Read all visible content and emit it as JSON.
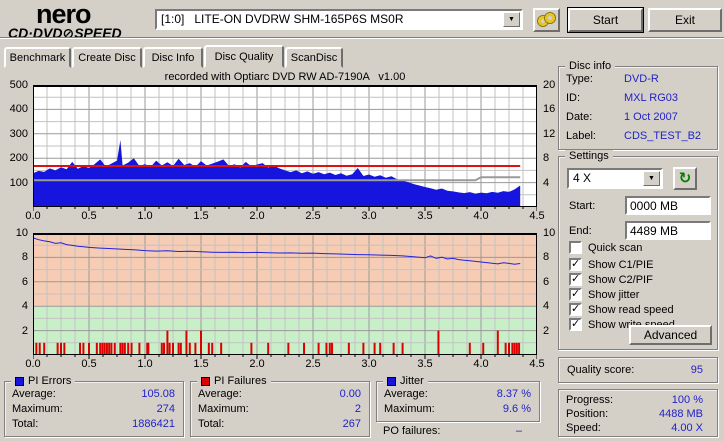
{
  "app": {
    "logo_line1": "nero",
    "logo_cd": "CD·DVD",
    "logo_disc_glyph": "⊘",
    "logo_speed": "SPEED",
    "drive": "[1:0]   LITE-ON DVDRW SHM-165P6S MS0R",
    "start_label": "Start",
    "exit_label": "Exit"
  },
  "icons": {
    "dropdown_arrow": "▼",
    "check": "✓",
    "refresh": "↻"
  },
  "colors": {
    "value_blue": "#2222c8",
    "pie_blue": "#1515dd",
    "pif_red": "#dd0000",
    "zone_salmon": "#f6cdb4",
    "zone_green": "#c9efc9",
    "window_bg": "#d4d0c8"
  },
  "tabs": [
    {
      "label": "Benchmark",
      "active": false
    },
    {
      "label": "Create Disc",
      "active": false
    },
    {
      "label": "Disc Info",
      "active": false
    },
    {
      "label": "Disc Quality",
      "active": true
    },
    {
      "label": "ScanDisc",
      "active": false
    }
  ],
  "chart_data": [
    {
      "type": "area",
      "title": "recorded with Optiarc DVD RW AD-7190A   v1.00",
      "x_range": [
        0,
        4.5
      ],
      "x_tick_labels": [
        "0.0",
        "0.5",
        "1.0",
        "1.5",
        "2.0",
        "2.5",
        "3.0",
        "3.5",
        "4.0",
        "4.5"
      ],
      "grid": {
        "x_minor": 0.125,
        "x_major": 0.5,
        "y_minor": 50,
        "y_major": 100
      },
      "plot_bg": "#ffffff",
      "y_axis": {
        "range": [
          0,
          500
        ],
        "ticks": [
          100,
          200,
          300,
          400,
          500
        ]
      },
      "y_right": {
        "range": [
          0,
          20
        ],
        "ticks": [
          4,
          8,
          12,
          16,
          20
        ]
      },
      "series": [
        {
          "name": "PI Errors",
          "type": "area",
          "color": "#1515dd",
          "points": [
            [
              0,
              138
            ],
            [
              0.05,
              148
            ],
            [
              0.1,
              144
            ],
            [
              0.15,
              158
            ],
            [
              0.2,
              150
            ],
            [
              0.25,
              163
            ],
            [
              0.3,
              155
            ],
            [
              0.35,
              185
            ],
            [
              0.4,
              157
            ],
            [
              0.45,
              168
            ],
            [
              0.5,
              160
            ],
            [
              0.55,
              176
            ],
            [
              0.6,
              195
            ],
            [
              0.65,
              166
            ],
            [
              0.7,
              178
            ],
            [
              0.75,
              190
            ],
            [
              0.78,
              274
            ],
            [
              0.8,
              170
            ],
            [
              0.85,
              182
            ],
            [
              0.9,
              200
            ],
            [
              0.95,
              168
            ],
            [
              1,
              176
            ],
            [
              1.05,
              164
            ],
            [
              1.1,
              190
            ],
            [
              1.15,
              170
            ],
            [
              1.2,
              183
            ],
            [
              1.25,
              168
            ],
            [
              1.3,
              198
            ],
            [
              1.35,
              172
            ],
            [
              1.4,
              180
            ],
            [
              1.45,
              165
            ],
            [
              1.5,
              188
            ],
            [
              1.55,
              170
            ],
            [
              1.6,
              178
            ],
            [
              1.65,
              186
            ],
            [
              1.7,
              195
            ],
            [
              1.75,
              168
            ],
            [
              1.8,
              175
            ],
            [
              1.85,
              162
            ],
            [
              1.9,
              185
            ],
            [
              1.95,
              166
            ],
            [
              2,
              174
            ],
            [
              2.05,
              180
            ],
            [
              2.1,
              162
            ],
            [
              2.15,
              170
            ],
            [
              2.2,
              158
            ],
            [
              2.25,
              150
            ],
            [
              2.3,
              143
            ],
            [
              2.35,
              150
            ],
            [
              2.4,
              138
            ],
            [
              2.45,
              146
            ],
            [
              2.5,
              136
            ],
            [
              2.55,
              143
            ],
            [
              2.6,
              134
            ],
            [
              2.65,
              141
            ],
            [
              2.7,
              131
            ],
            [
              2.75,
              138
            ],
            [
              2.8,
              128
            ],
            [
              2.85,
              134
            ],
            [
              2.9,
              160
            ],
            [
              2.95,
              127
            ],
            [
              3,
              133
            ],
            [
              3.05,
              124
            ],
            [
              3.1,
              130
            ],
            [
              3.15,
              120
            ],
            [
              3.2,
              126
            ],
            [
              3.25,
              114
            ],
            [
              3.3,
              108
            ],
            [
              3.35,
              102
            ],
            [
              3.4,
              94
            ],
            [
              3.45,
              88
            ],
            [
              3.5,
              82
            ],
            [
              3.55,
              77
            ],
            [
              3.6,
              71
            ],
            [
              3.65,
              76
            ],
            [
              3.7,
              67
            ],
            [
              3.75,
              64
            ],
            [
              3.8,
              60
            ],
            [
              3.85,
              57
            ],
            [
              3.9,
              61
            ],
            [
              3.95,
              55
            ],
            [
              4,
              59
            ],
            [
              4.05,
              56
            ],
            [
              4.1,
              62
            ],
            [
              4.15,
              58
            ],
            [
              4.2,
              65
            ],
            [
              4.25,
              62
            ],
            [
              4.3,
              72
            ],
            [
              4.35,
              88
            ]
          ]
        },
        {
          "name": "Read speed",
          "type": "line",
          "color": "#e01010",
          "width": 2,
          "points": [
            [
              0,
              168
            ],
            [
              4.35,
              168
            ]
          ]
        },
        {
          "name": "Write speed",
          "type": "line",
          "color": "#9a9a9a",
          "width": 2,
          "points": [
            [
              0,
              110
            ],
            [
              3.95,
              110
            ],
            [
              4.0,
              122
            ],
            [
              4.35,
              122
            ]
          ]
        }
      ]
    },
    {
      "type": "line",
      "x_range": [
        0,
        4.5
      ],
      "x_tick_labels": [
        "0.0",
        "0.5",
        "1.0",
        "1.5",
        "2.0",
        "2.5",
        "3.0",
        "3.5",
        "4.0",
        "4.5"
      ],
      "grid": {
        "x_minor": 0.125,
        "x_major": 0.5,
        "y_minor": 1,
        "y_major": 2
      },
      "plot_bg": "#c9efc9",
      "zones": [
        {
          "from": 4,
          "to": 10,
          "color": "#f6cdb4"
        },
        {
          "from": 0,
          "to": 4,
          "color": "#c9efc9"
        }
      ],
      "y_axis": {
        "range": [
          0,
          10
        ],
        "ticks": [
          2,
          4,
          6,
          8,
          10
        ]
      },
      "y_right": {
        "range": [
          0,
          10
        ],
        "ticks": [
          2,
          4,
          6,
          8,
          10
        ]
      },
      "series": [
        {
          "name": "PI Failures",
          "type": "bars",
          "color": "#dd0000",
          "points": [
            [
              0.03,
              1
            ],
            [
              0.06,
              1
            ],
            [
              0.1,
              1
            ],
            [
              0.22,
              1
            ],
            [
              0.25,
              1
            ],
            [
              0.28,
              1
            ],
            [
              0.42,
              1
            ],
            [
              0.45,
              1
            ],
            [
              0.5,
              1
            ],
            [
              0.57,
              1
            ],
            [
              0.6,
              1
            ],
            [
              0.62,
              1
            ],
            [
              0.64,
              1
            ],
            [
              0.66,
              1
            ],
            [
              0.68,
              1
            ],
            [
              0.7,
              1
            ],
            [
              0.73,
              1
            ],
            [
              0.78,
              1
            ],
            [
              0.8,
              1
            ],
            [
              0.82,
              1
            ],
            [
              0.85,
              1
            ],
            [
              0.88,
              1
            ],
            [
              0.95,
              1
            ],
            [
              1.02,
              1
            ],
            [
              1.03,
              1
            ],
            [
              1.15,
              1
            ],
            [
              1.17,
              1
            ],
            [
              1.2,
              2
            ],
            [
              1.22,
              1
            ],
            [
              1.25,
              1
            ],
            [
              1.3,
              1
            ],
            [
              1.32,
              1
            ],
            [
              1.37,
              2
            ],
            [
              1.4,
              1
            ],
            [
              1.45,
              1
            ],
            [
              1.5,
              2
            ],
            [
              1.57,
              1
            ],
            [
              1.6,
              1
            ],
            [
              1.68,
              1
            ],
            [
              1.95,
              1
            ],
            [
              2.1,
              1
            ],
            [
              2.28,
              1
            ],
            [
              2.42,
              1
            ],
            [
              2.55,
              1
            ],
            [
              2.62,
              1
            ],
            [
              2.65,
              1
            ],
            [
              2.67,
              1
            ],
            [
              2.82,
              1
            ],
            [
              2.95,
              1
            ],
            [
              3.05,
              1
            ],
            [
              3.1,
              1
            ],
            [
              3.22,
              1
            ],
            [
              3.3,
              1
            ],
            [
              3.62,
              2
            ],
            [
              3.9,
              1
            ],
            [
              4.02,
              1
            ],
            [
              4.15,
              2
            ],
            [
              4.22,
              1
            ],
            [
              4.25,
              1
            ],
            [
              4.28,
              1
            ],
            [
              4.3,
              1
            ],
            [
              4.32,
              1
            ],
            [
              4.34,
              1
            ]
          ]
        },
        {
          "name": "Jitter",
          "type": "line",
          "color": "#2222dd",
          "width": 1,
          "points": [
            [
              0,
              9.6
            ],
            [
              0.05,
              9.45
            ],
            [
              0.1,
              9.35
            ],
            [
              0.15,
              9.28
            ],
            [
              0.2,
              9.15
            ],
            [
              0.25,
              9.2
            ],
            [
              0.3,
              9.05
            ],
            [
              0.35,
              8.98
            ],
            [
              0.4,
              8.92
            ],
            [
              0.45,
              8.88
            ],
            [
              0.5,
              8.82
            ],
            [
              0.6,
              8.76
            ],
            [
              0.7,
              8.72
            ],
            [
              0.8,
              8.66
            ],
            [
              0.9,
              8.62
            ],
            [
              1,
              8.56
            ],
            [
              1.1,
              8.52
            ],
            [
              1.2,
              8.54
            ],
            [
              1.3,
              8.48
            ],
            [
              1.4,
              8.51
            ],
            [
              1.5,
              8.46
            ],
            [
              1.6,
              8.43
            ],
            [
              1.7,
              8.41
            ],
            [
              1.8,
              8.43
            ],
            [
              1.9,
              8.39
            ],
            [
              2,
              8.41
            ],
            [
              2.1,
              8.38
            ],
            [
              2.2,
              8.36
            ],
            [
              2.3,
              8.37
            ],
            [
              2.4,
              8.34
            ],
            [
              2.5,
              8.35
            ],
            [
              2.6,
              8.31
            ],
            [
              2.7,
              8.29
            ],
            [
              2.8,
              8.26
            ],
            [
              2.9,
              8.23
            ],
            [
              3,
              8.21
            ],
            [
              3.1,
              8.19
            ],
            [
              3.2,
              8.16
            ],
            [
              3.3,
              8.12
            ],
            [
              3.4,
              8.06
            ],
            [
              3.5,
              7.97
            ],
            [
              3.55,
              8.12
            ],
            [
              3.6,
              7.92
            ],
            [
              3.65,
              8.02
            ],
            [
              3.7,
              7.87
            ],
            [
              3.75,
              7.93
            ],
            [
              3.8,
              7.82
            ],
            [
              3.85,
              7.77
            ],
            [
              3.9,
              7.72
            ],
            [
              3.95,
              7.67
            ],
            [
              4,
              7.62
            ],
            [
              4.05,
              7.57
            ],
            [
              4.1,
              7.52
            ],
            [
              4.15,
              7.47
            ],
            [
              4.2,
              7.56
            ],
            [
              4.25,
              7.51
            ],
            [
              4.3,
              7.44
            ],
            [
              4.35,
              7.5
            ]
          ]
        }
      ]
    }
  ],
  "disc_info": {
    "title": "Disc info",
    "rows": [
      {
        "label": "Type:",
        "value": "DVD-R"
      },
      {
        "label": "ID:",
        "value": "MXL RG03"
      },
      {
        "label": "Date:",
        "value": "1 Oct 2007"
      },
      {
        "label": "Label:",
        "value": "CDS_TEST_B2"
      }
    ]
  },
  "settings": {
    "title": "Settings",
    "speed_value": "4 X",
    "start_label": "Start:",
    "start_value": "0000 MB",
    "end_label": "End:",
    "end_value": "4489 MB",
    "checkboxes": [
      {
        "label": "Quick scan",
        "checked": false
      },
      {
        "label": "Show C1/PIE",
        "checked": true
      },
      {
        "label": "Show C2/PIF",
        "checked": true
      },
      {
        "label": "Show jitter",
        "checked": true
      },
      {
        "label": "Show read speed",
        "checked": true
      },
      {
        "label": "Show write speed",
        "checked": true
      }
    ],
    "advanced_label": "Advanced"
  },
  "quality": {
    "label": "Quality score:",
    "value": "95"
  },
  "progress": {
    "rows": [
      {
        "label": "Progress:",
        "value": "100 %"
      },
      {
        "label": "Position:",
        "value": "4488 MB"
      },
      {
        "label": "Speed:",
        "value": "4.00 X"
      }
    ]
  },
  "stats": [
    {
      "title": "PI Errors",
      "marker": "#1515dd",
      "rows": [
        [
          "Average:",
          "105.08"
        ],
        [
          "Maximum:",
          "274"
        ],
        [
          "Total:",
          "1886421"
        ]
      ]
    },
    {
      "title": "PI Failures",
      "marker": "#dd0000",
      "rows": [
        [
          "Average:",
          "0.00"
        ],
        [
          "Maximum:",
          "2"
        ],
        [
          "Total:",
          "267"
        ]
      ]
    },
    {
      "title": "Jitter",
      "marker": "#1515dd",
      "rows": [
        [
          "Average:",
          "8.37 %"
        ],
        [
          "Maximum:",
          "9.6 %"
        ]
      ]
    }
  ],
  "po_failures": {
    "label": "PO failures:",
    "value": "–"
  }
}
